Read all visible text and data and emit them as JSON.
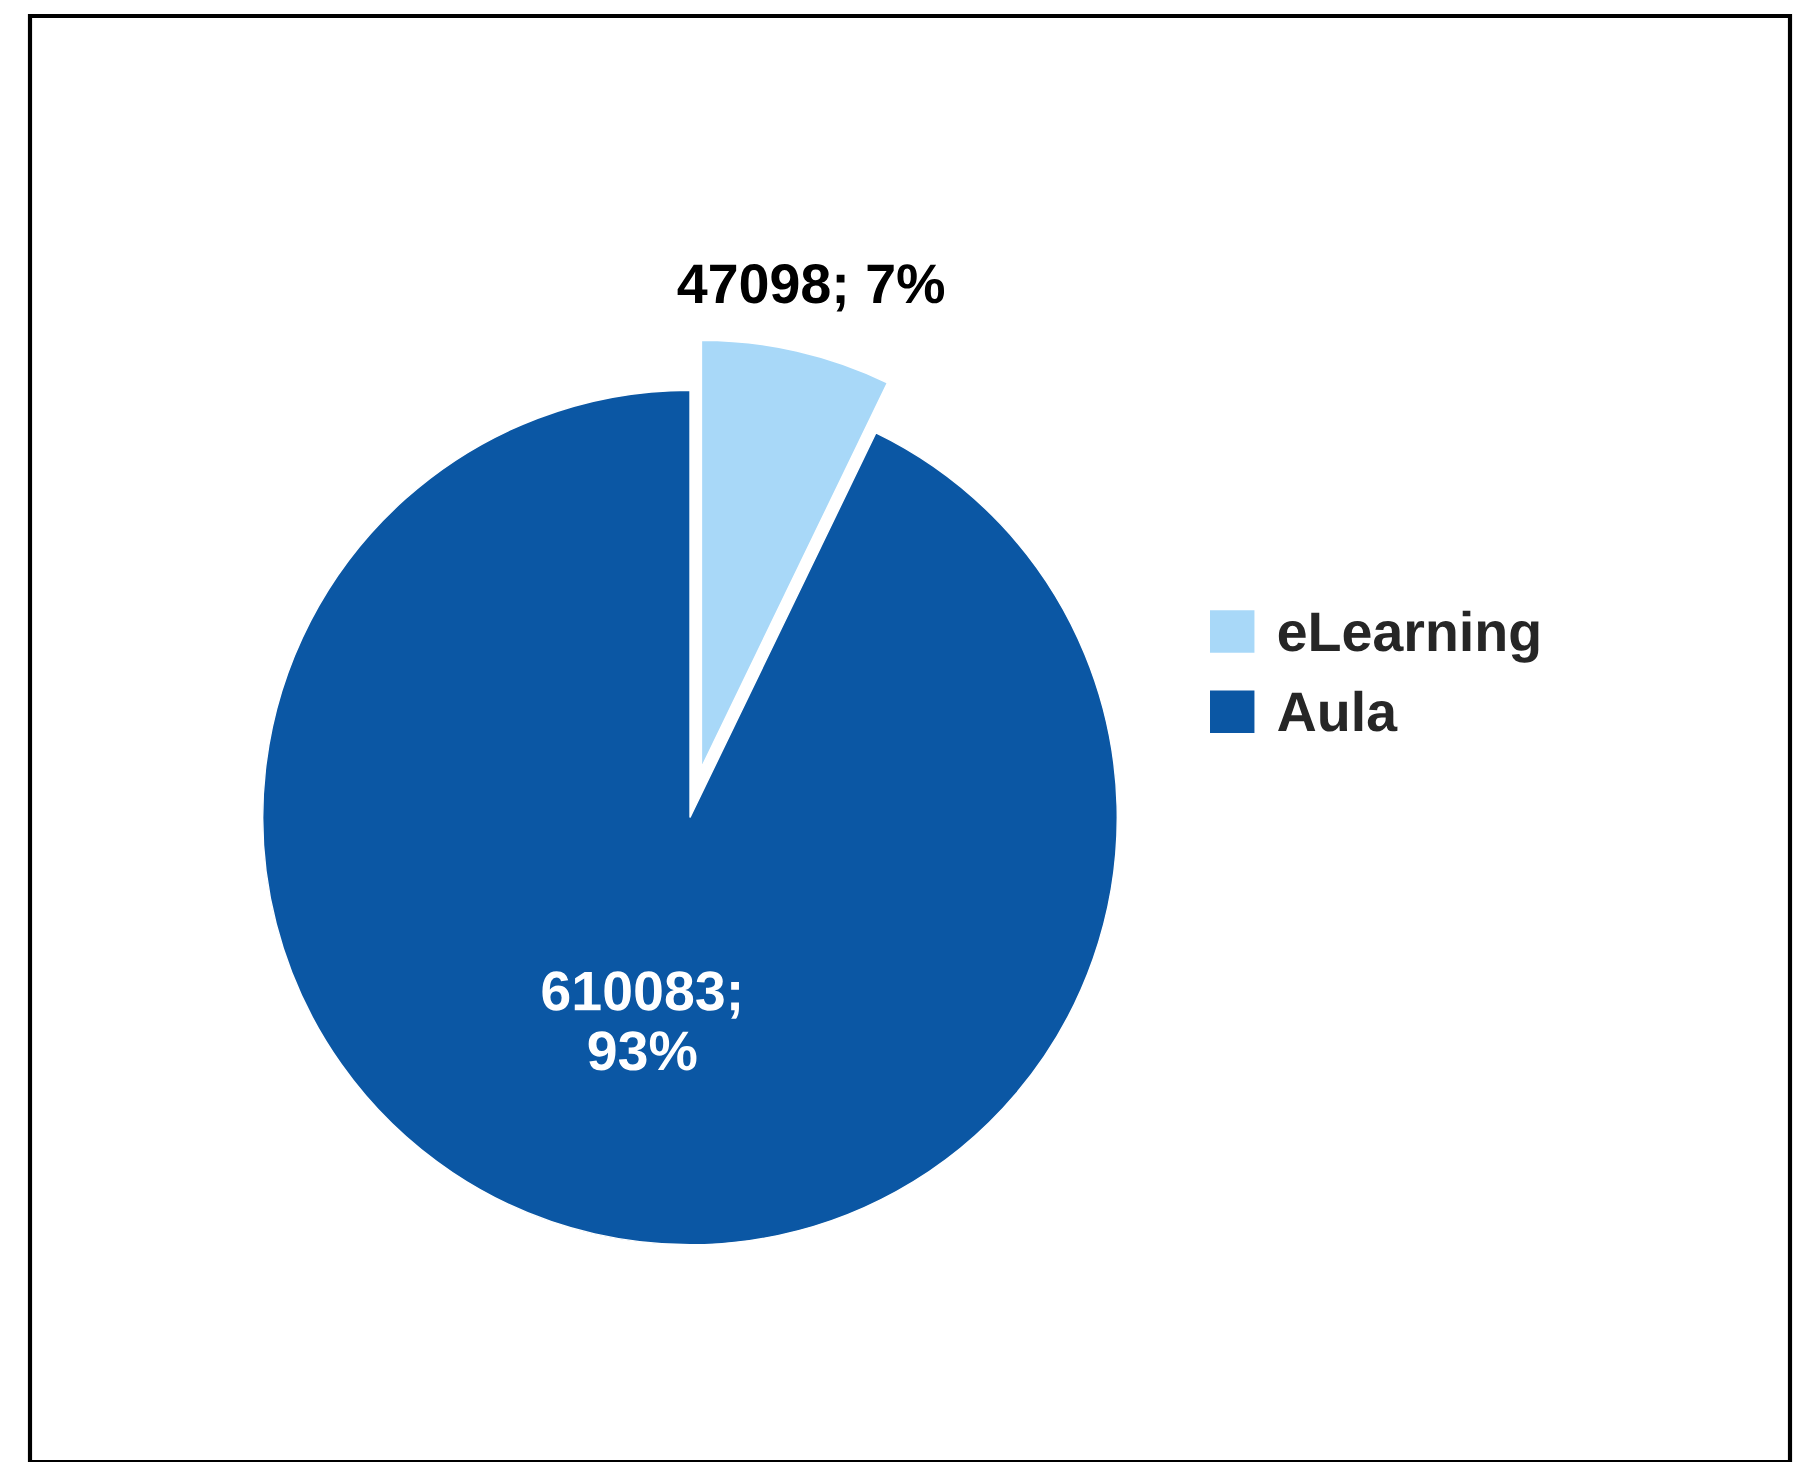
{
  "chart_data": {
    "type": "pie",
    "categories": [
      "eLearning",
      "Aula"
    ],
    "values": [
      47098,
      610083
    ],
    "colors": [
      "#a8d8f8",
      "#0b57a4"
    ],
    "value_labels": [
      "47098; 7%",
      "610083;\n93%"
    ],
    "legend": "right"
  }
}
